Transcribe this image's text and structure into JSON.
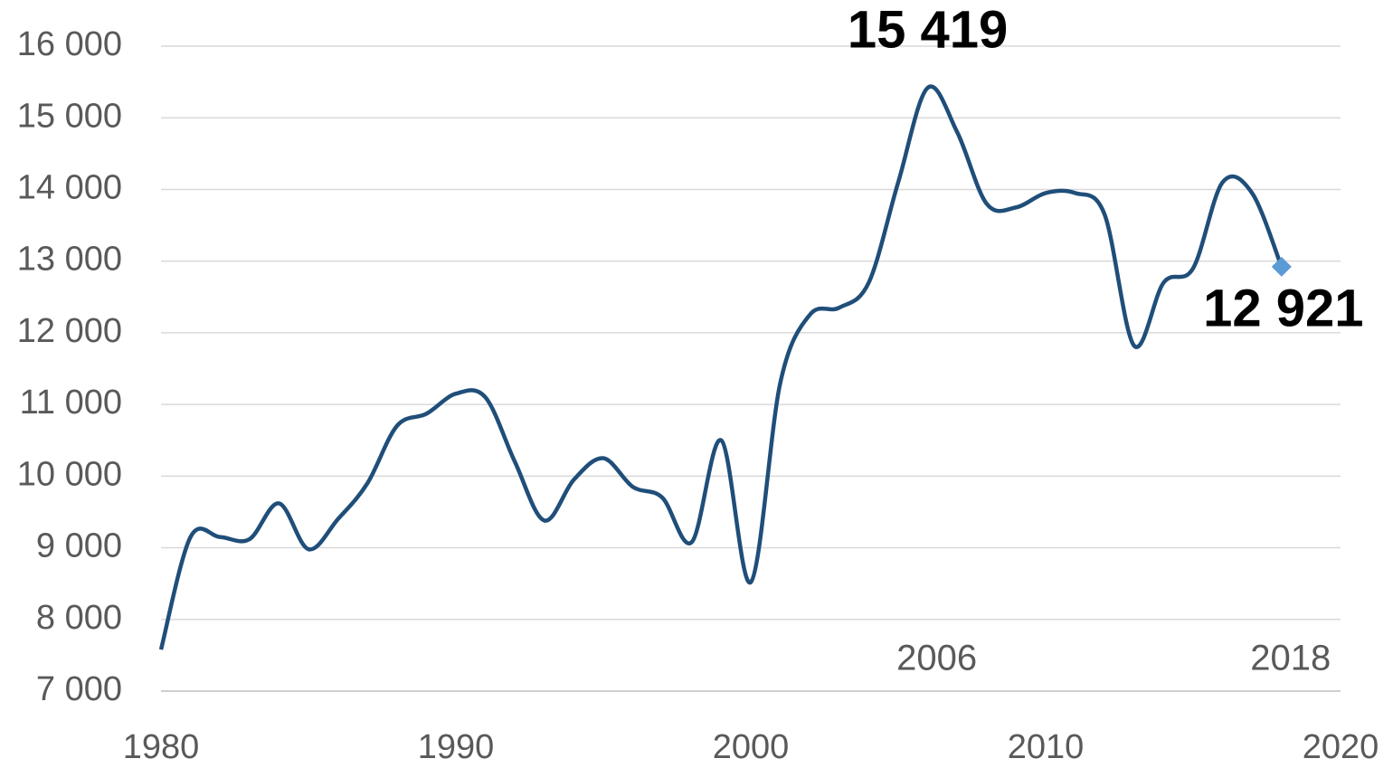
{
  "chart_data": {
    "type": "line",
    "x": [
      1980,
      1981,
      1982,
      1983,
      1984,
      1985,
      1986,
      1987,
      1988,
      1989,
      1990,
      1991,
      1992,
      1993,
      1994,
      1995,
      1996,
      1997,
      1998,
      1999,
      2000,
      2001,
      2002,
      2003,
      2004,
      2005,
      2006,
      2007,
      2008,
      2009,
      2010,
      2011,
      2012,
      2013,
      2014,
      2015,
      2016,
      2017,
      2018
    ],
    "values": [
      7580,
      9150,
      9150,
      9120,
      9620,
      8980,
      9400,
      9900,
      10700,
      10870,
      11150,
      11100,
      10200,
      9380,
      9950,
      10250,
      9850,
      9700,
      9080,
      10500,
      8520,
      11300,
      12250,
      12350,
      12700,
      14100,
      15419,
      14800,
      13800,
      13750,
      13950,
      13950,
      13650,
      11820,
      12700,
      12900,
      14100,
      13950,
      12921
    ],
    "value_labels": [
      null,
      null,
      null,
      null,
      null,
      null,
      null,
      null,
      null,
      null,
      null,
      null,
      null,
      null,
      null,
      null,
      null,
      null,
      null,
      null,
      null,
      null,
      null,
      null,
      null,
      null,
      "15 419",
      null,
      null,
      null,
      null,
      null,
      null,
      null,
      null,
      null,
      null,
      null,
      "12 921"
    ],
    "color": "#1f4e79",
    "marker_color": "#5b9bd5",
    "annotations": [
      "2006",
      "2018"
    ],
    "xlim": [
      1980,
      2020
    ],
    "xticks": [
      1980,
      1990,
      2000,
      2010,
      2020
    ],
    "ylim": [
      7000,
      16000
    ],
    "yticks": [
      {
        "value": 7000,
        "label": "7 000"
      },
      {
        "value": 8000,
        "label": "8 000"
      },
      {
        "value": 9000,
        "label": "9 000"
      },
      {
        "value": 10000,
        "label": "10 000"
      },
      {
        "value": 11000,
        "label": "11 000"
      },
      {
        "value": 12000,
        "label": "12 000"
      },
      {
        "value": 13000,
        "label": "13 000"
      },
      {
        "value": 14000,
        "label": "14 000"
      },
      {
        "value": 15000,
        "label": "15 000"
      },
      {
        "value": 16000,
        "label": "16 000"
      }
    ],
    "grid": true
  }
}
